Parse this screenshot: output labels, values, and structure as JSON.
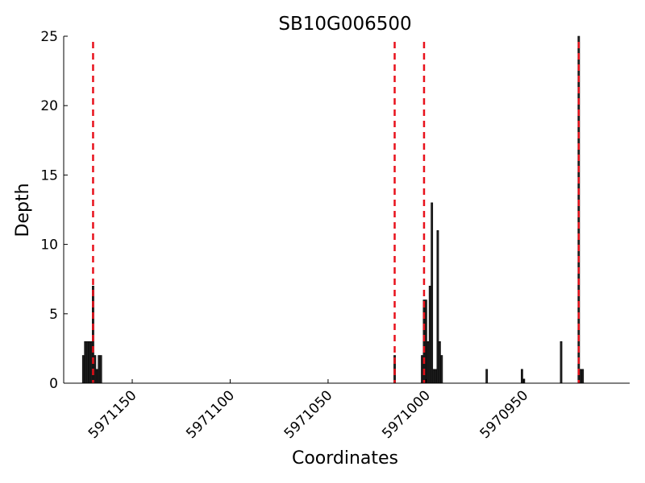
{
  "chart_data": {
    "type": "bar",
    "title": "SB10G006500",
    "xlabel": "Coordinates",
    "ylabel": "Depth",
    "x_reversed": true,
    "xlim": [
      5971185,
      5970896
    ],
    "ylim": [
      0,
      25
    ],
    "xticks": [
      5971150,
      5971100,
      5971050,
      5971000,
      5970950
    ],
    "yticks": [
      0,
      5,
      10,
      15,
      20,
      25
    ],
    "bar_color": "#222222",
    "marker_color": "#e8111b",
    "grid": false,
    "bars": [
      {
        "x": 5971175,
        "y": 2
      },
      {
        "x": 5971174,
        "y": 3
      },
      {
        "x": 5971173,
        "y": 3
      },
      {
        "x": 5971172,
        "y": 3
      },
      {
        "x": 5971171,
        "y": 3
      },
      {
        "x": 5971170,
        "y": 7
      },
      {
        "x": 5971169,
        "y": 2
      },
      {
        "x": 5971168,
        "y": 1
      },
      {
        "x": 5971167,
        "y": 2
      },
      {
        "x": 5971166,
        "y": 2
      },
      {
        "x": 5971016,
        "y": 2
      },
      {
        "x": 5971002,
        "y": 2
      },
      {
        "x": 5971001,
        "y": 6
      },
      {
        "x": 5971000,
        "y": 6
      },
      {
        "x": 5970999,
        "y": 3
      },
      {
        "x": 5970998,
        "y": 7
      },
      {
        "x": 5970997,
        "y": 13
      },
      {
        "x": 5970996,
        "y": 1
      },
      {
        "x": 5970995,
        "y": 1
      },
      {
        "x": 5970994,
        "y": 11
      },
      {
        "x": 5970993,
        "y": 3
      },
      {
        "x": 5970992,
        "y": 2
      },
      {
        "x": 5970969,
        "y": 1
      },
      {
        "x": 5970951,
        "y": 1
      },
      {
        "x": 5970950,
        "y": 0.3
      },
      {
        "x": 5970931,
        "y": 3
      },
      {
        "x": 5970922,
        "y": 25
      },
      {
        "x": 5970921,
        "y": 1
      },
      {
        "x": 5970920,
        "y": 1
      }
    ],
    "vertical_markers": [
      5971170,
      5971016,
      5971001,
      5970922
    ]
  }
}
